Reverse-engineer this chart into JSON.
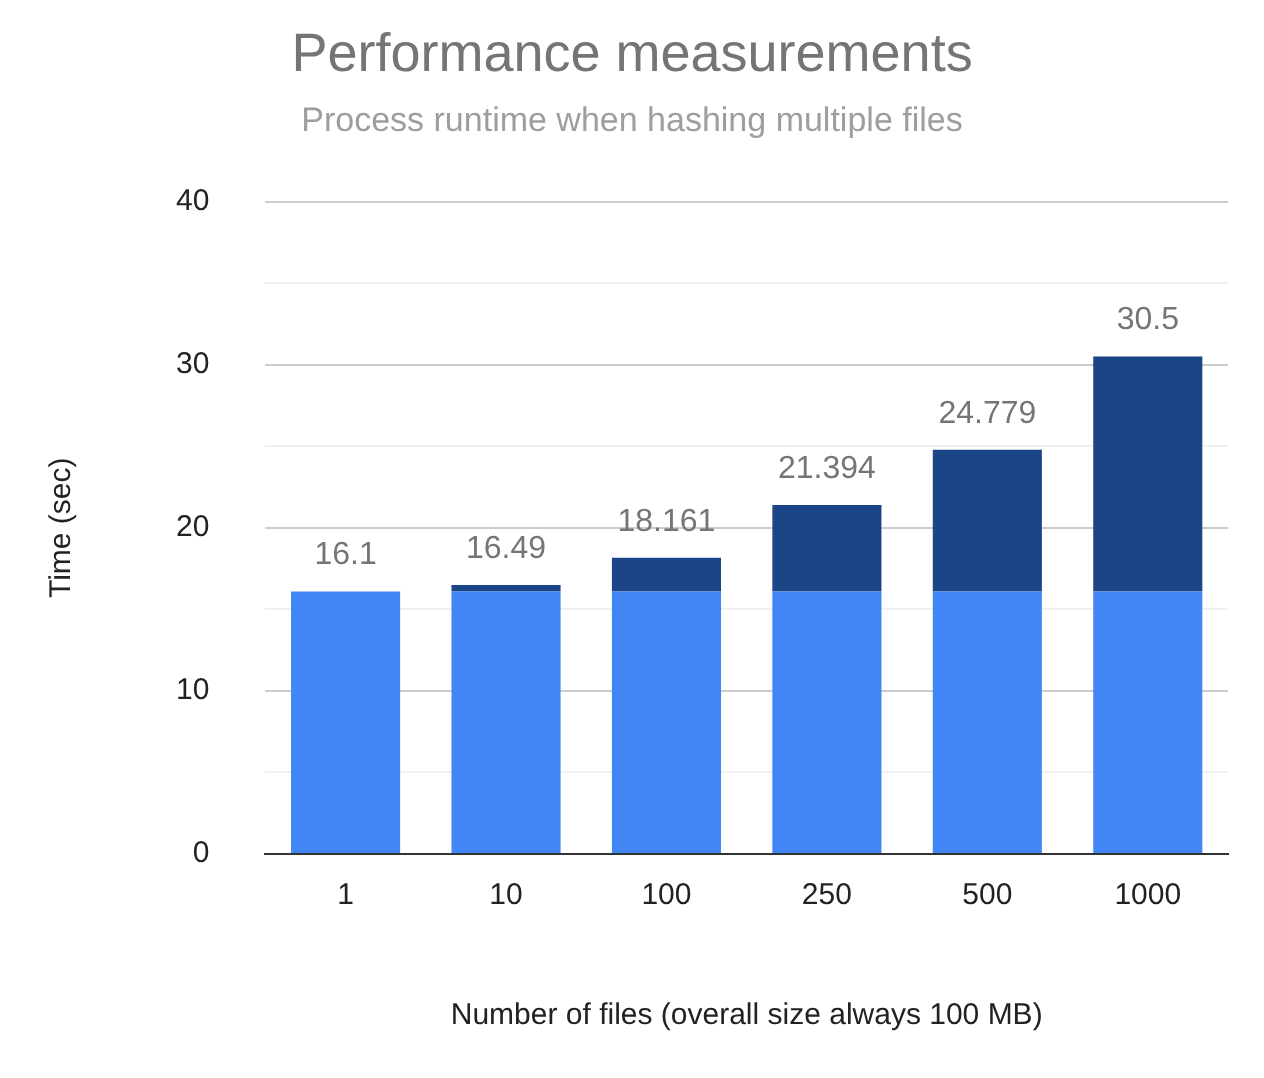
{
  "chart_data": {
    "type": "bar",
    "title": "Performance measurements",
    "subtitle": "Process runtime when hashing multiple files",
    "xlabel": "Number of files (overall size always 100 MB)",
    "ylabel": "Time (sec)",
    "categories": [
      "1",
      "10",
      "100",
      "250",
      "500",
      "1000"
    ],
    "series": [
      {
        "color": "#4285f4",
        "values": [
          16.1,
          16.1,
          16.1,
          16.1,
          16.1,
          16.1
        ]
      },
      {
        "color": "#1c4587",
        "values": [
          0,
          0.39,
          2.061,
          5.294,
          8.679,
          14.4
        ]
      }
    ],
    "stacked": true,
    "totals": [
      "16.1",
      "16.49",
      "18.161",
      "21.394",
      "24.779",
      "30.5"
    ],
    "ylim": [
      0,
      40
    ],
    "yticks": [
      0,
      {
        "value": 5,
        "label": null
      },
      10,
      {
        "value": 15,
        "label": null
      },
      20,
      {
        "value": 25,
        "label": null
      },
      30,
      {
        "value": 35,
        "label": null
      },
      40
    ],
    "grid": "y",
    "legend": false
  }
}
